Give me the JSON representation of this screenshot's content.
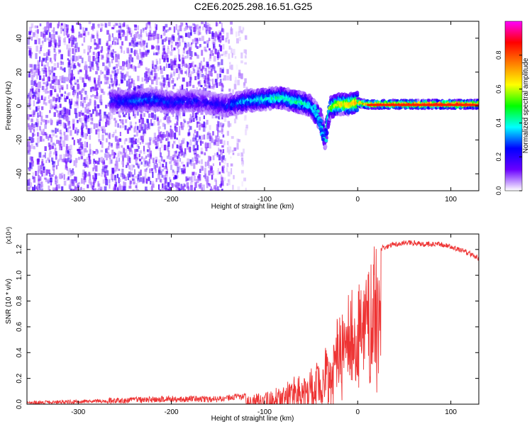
{
  "title": "C2E6.2025.298.16.51.G25",
  "chart_data": [
    {
      "type": "heatmap",
      "xlabel": "Height of straight line (km)",
      "ylabel": "Frequency (Hz)",
      "xlim": [
        -355,
        130
      ],
      "ylim": [
        -50,
        50
      ],
      "xticks": [
        -300,
        -200,
        -100,
        0,
        100
      ],
      "yticks": [
        -40,
        -20,
        0,
        20,
        40
      ],
      "colorbar": {
        "label": "Normalized spectral amplitude",
        "range": [
          0,
          1
        ],
        "ticks": [
          0.0,
          0.2,
          0.4,
          0.6,
          0.8
        ],
        "tick_labels": [
          "0.0",
          "0.2",
          "0.4",
          "0.6",
          "0.8"
        ],
        "colormap": [
          "#ffffff",
          "#6a00ff",
          "#0000ff",
          "#00ffff",
          "#00ff00",
          "#ffff00",
          "#ff7f00",
          "#ff0000",
          "#ff00ff"
        ]
      },
      "ridge": {
        "x": [
          -260,
          -240,
          -220,
          -200,
          -180,
          -160,
          -140,
          -120,
          -100,
          -80,
          -70,
          -60,
          -50,
          -40,
          -35,
          -30,
          -20,
          -10,
          0,
          10,
          20,
          50,
          100,
          130
        ],
        "freq": [
          3,
          3,
          4,
          2,
          3,
          2,
          0,
          3,
          4,
          5,
          3,
          2,
          0,
          -8,
          -20,
          -1,
          1,
          1,
          2,
          1,
          1,
          1,
          1,
          1
        ],
        "amplitude": [
          0.25,
          0.3,
          0.3,
          0.25,
          0.25,
          0.2,
          0.25,
          0.35,
          0.4,
          0.45,
          0.45,
          0.45,
          0.4,
          0.35,
          0.25,
          0.55,
          0.65,
          0.7,
          0.75,
          0.8,
          0.85,
          0.9,
          0.9,
          0.9
        ]
      },
      "noise_regions": [
        {
          "x_range": [
            -355,
            -145
          ],
          "freq_range": [
            -50,
            50
          ],
          "amplitude": 0.1
        },
        {
          "x_range": [
            -145,
            -120
          ],
          "freq_range": [
            -50,
            50
          ],
          "amplitude": 0.04
        }
      ]
    },
    {
      "type": "line",
      "xlabel": "Height of straight line (km)",
      "ylabel": "SNR (10 * v/v)",
      "scale_label": "(x10⁴)",
      "xlim": [
        -355,
        130
      ],
      "ylim": [
        0,
        1.32
      ],
      "xticks": [
        -300,
        -200,
        -100,
        0,
        100
      ],
      "yticks": [
        0.0,
        0.2,
        0.4,
        0.6,
        0.8,
        1.0,
        1.2
      ],
      "ytick_labels": [
        "0.0",
        "0.2",
        "0.4",
        "0.6",
        "0.8",
        "1.0",
        "1.2"
      ],
      "color": "#ee3333",
      "series": [
        {
          "name": "SNR",
          "x": [
            -355,
            -300,
            -250,
            -200,
            -150,
            -120,
            -100,
            -90,
            -80,
            -70,
            -60,
            -50,
            -40,
            -35,
            -30,
            -25,
            -20,
            -15,
            -10,
            -5,
            0,
            5,
            10,
            15,
            20,
            30,
            40,
            50,
            60,
            70,
            80,
            90,
            100,
            110,
            120,
            130
          ],
          "y": [
            0.01,
            0.02,
            0.03,
            0.04,
            0.04,
            0.06,
            0.1,
            0.13,
            0.17,
            0.2,
            0.23,
            0.28,
            0.33,
            0.5,
            0.3,
            0.55,
            0.75,
            0.65,
            0.88,
            0.85,
            0.92,
            0.98,
            1.05,
            1.15,
            1.2,
            1.22,
            1.24,
            1.25,
            1.25,
            1.24,
            1.24,
            1.24,
            1.22,
            1.2,
            1.17,
            1.13
          ]
        }
      ]
    }
  ]
}
